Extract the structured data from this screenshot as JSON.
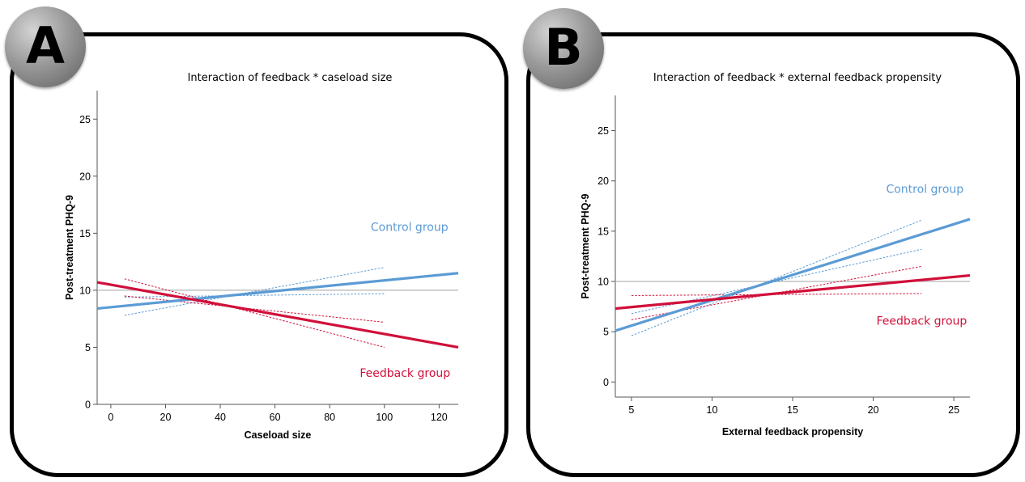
{
  "colors": {
    "control": "#5b9bd5",
    "feedback": "#d0103a",
    "reference": "#b3b3b3",
    "axis": "#555555"
  },
  "chart_data": [
    {
      "panel_letter": "A",
      "type": "line",
      "title": "Interaction of feedback * caseload size",
      "xlabel": "Caseload size",
      "ylabel": "Post-treatment PHQ-9",
      "xlim": [
        -5,
        127
      ],
      "ylim": [
        0,
        27.5
      ],
      "xticks": [
        0,
        20,
        40,
        60,
        80,
        100,
        120
      ],
      "yticks": [
        0,
        5,
        10,
        15,
        20,
        25
      ],
      "reference_line_y": 10,
      "series": [
        {
          "name": "Control group",
          "role": "control",
          "x": [
            -5,
            127
          ],
          "y": [
            8.4,
            11.5
          ],
          "ci_lower": {
            "x": [
              5,
              100
            ],
            "y": [
              9.4,
              9.7
            ]
          },
          "ci_upper": {
            "x": [
              5,
              100
            ],
            "y": [
              7.8,
              12.0
            ]
          }
        },
        {
          "name": "Feedback group",
          "role": "feedback",
          "x": [
            -5,
            127
          ],
          "y": [
            10.7,
            5.0
          ],
          "ci_lower": {
            "x": [
              5,
              100
            ],
            "y": [
              11.0,
              5.0
            ]
          },
          "ci_upper": {
            "x": [
              5,
              100
            ],
            "y": [
              9.5,
              7.2
            ]
          }
        }
      ],
      "annotations": [
        {
          "text": "Control group",
          "role": "control",
          "x": 95,
          "y": 15.2
        },
        {
          "text": "Feedback group",
          "role": "feedback",
          "x": 91,
          "y": 2.4
        }
      ]
    },
    {
      "panel_letter": "B",
      "type": "line",
      "title": "Interaction of feedback * external feedback propensity",
      "xlabel": "External feedback propensity",
      "ylabel": "Post-treatment PHQ-9",
      "xlim": [
        4,
        26
      ],
      "ylim": [
        -1.5,
        28.5
      ],
      "xticks": [
        5,
        10,
        15,
        20,
        25
      ],
      "yticks": [
        0,
        5,
        10,
        15,
        20,
        25
      ],
      "reference_line_y": 10,
      "series": [
        {
          "name": "Control group",
          "role": "control",
          "x": [
            4,
            26
          ],
          "y": [
            5.1,
            16.2
          ],
          "ci_lower": {
            "x": [
              5,
              23
            ],
            "y": [
              4.6,
              16.1
            ]
          },
          "ci_upper": {
            "x": [
              5,
              23
            ],
            "y": [
              6.8,
              13.2
            ]
          }
        },
        {
          "name": "Feedback group",
          "role": "feedback",
          "x": [
            4,
            26
          ],
          "y": [
            7.3,
            10.6
          ],
          "ci_lower": {
            "x": [
              5,
              23
            ],
            "y": [
              8.6,
              8.8
            ]
          },
          "ci_upper": {
            "x": [
              5,
              23
            ],
            "y": [
              6.2,
              11.5
            ]
          }
        }
      ],
      "annotations": [
        {
          "text": "Control group",
          "role": "control",
          "x": 20.8,
          "y": 18.8
        },
        {
          "text": "Feedback group",
          "role": "feedback",
          "x": 20.2,
          "y": 5.7
        }
      ]
    }
  ]
}
